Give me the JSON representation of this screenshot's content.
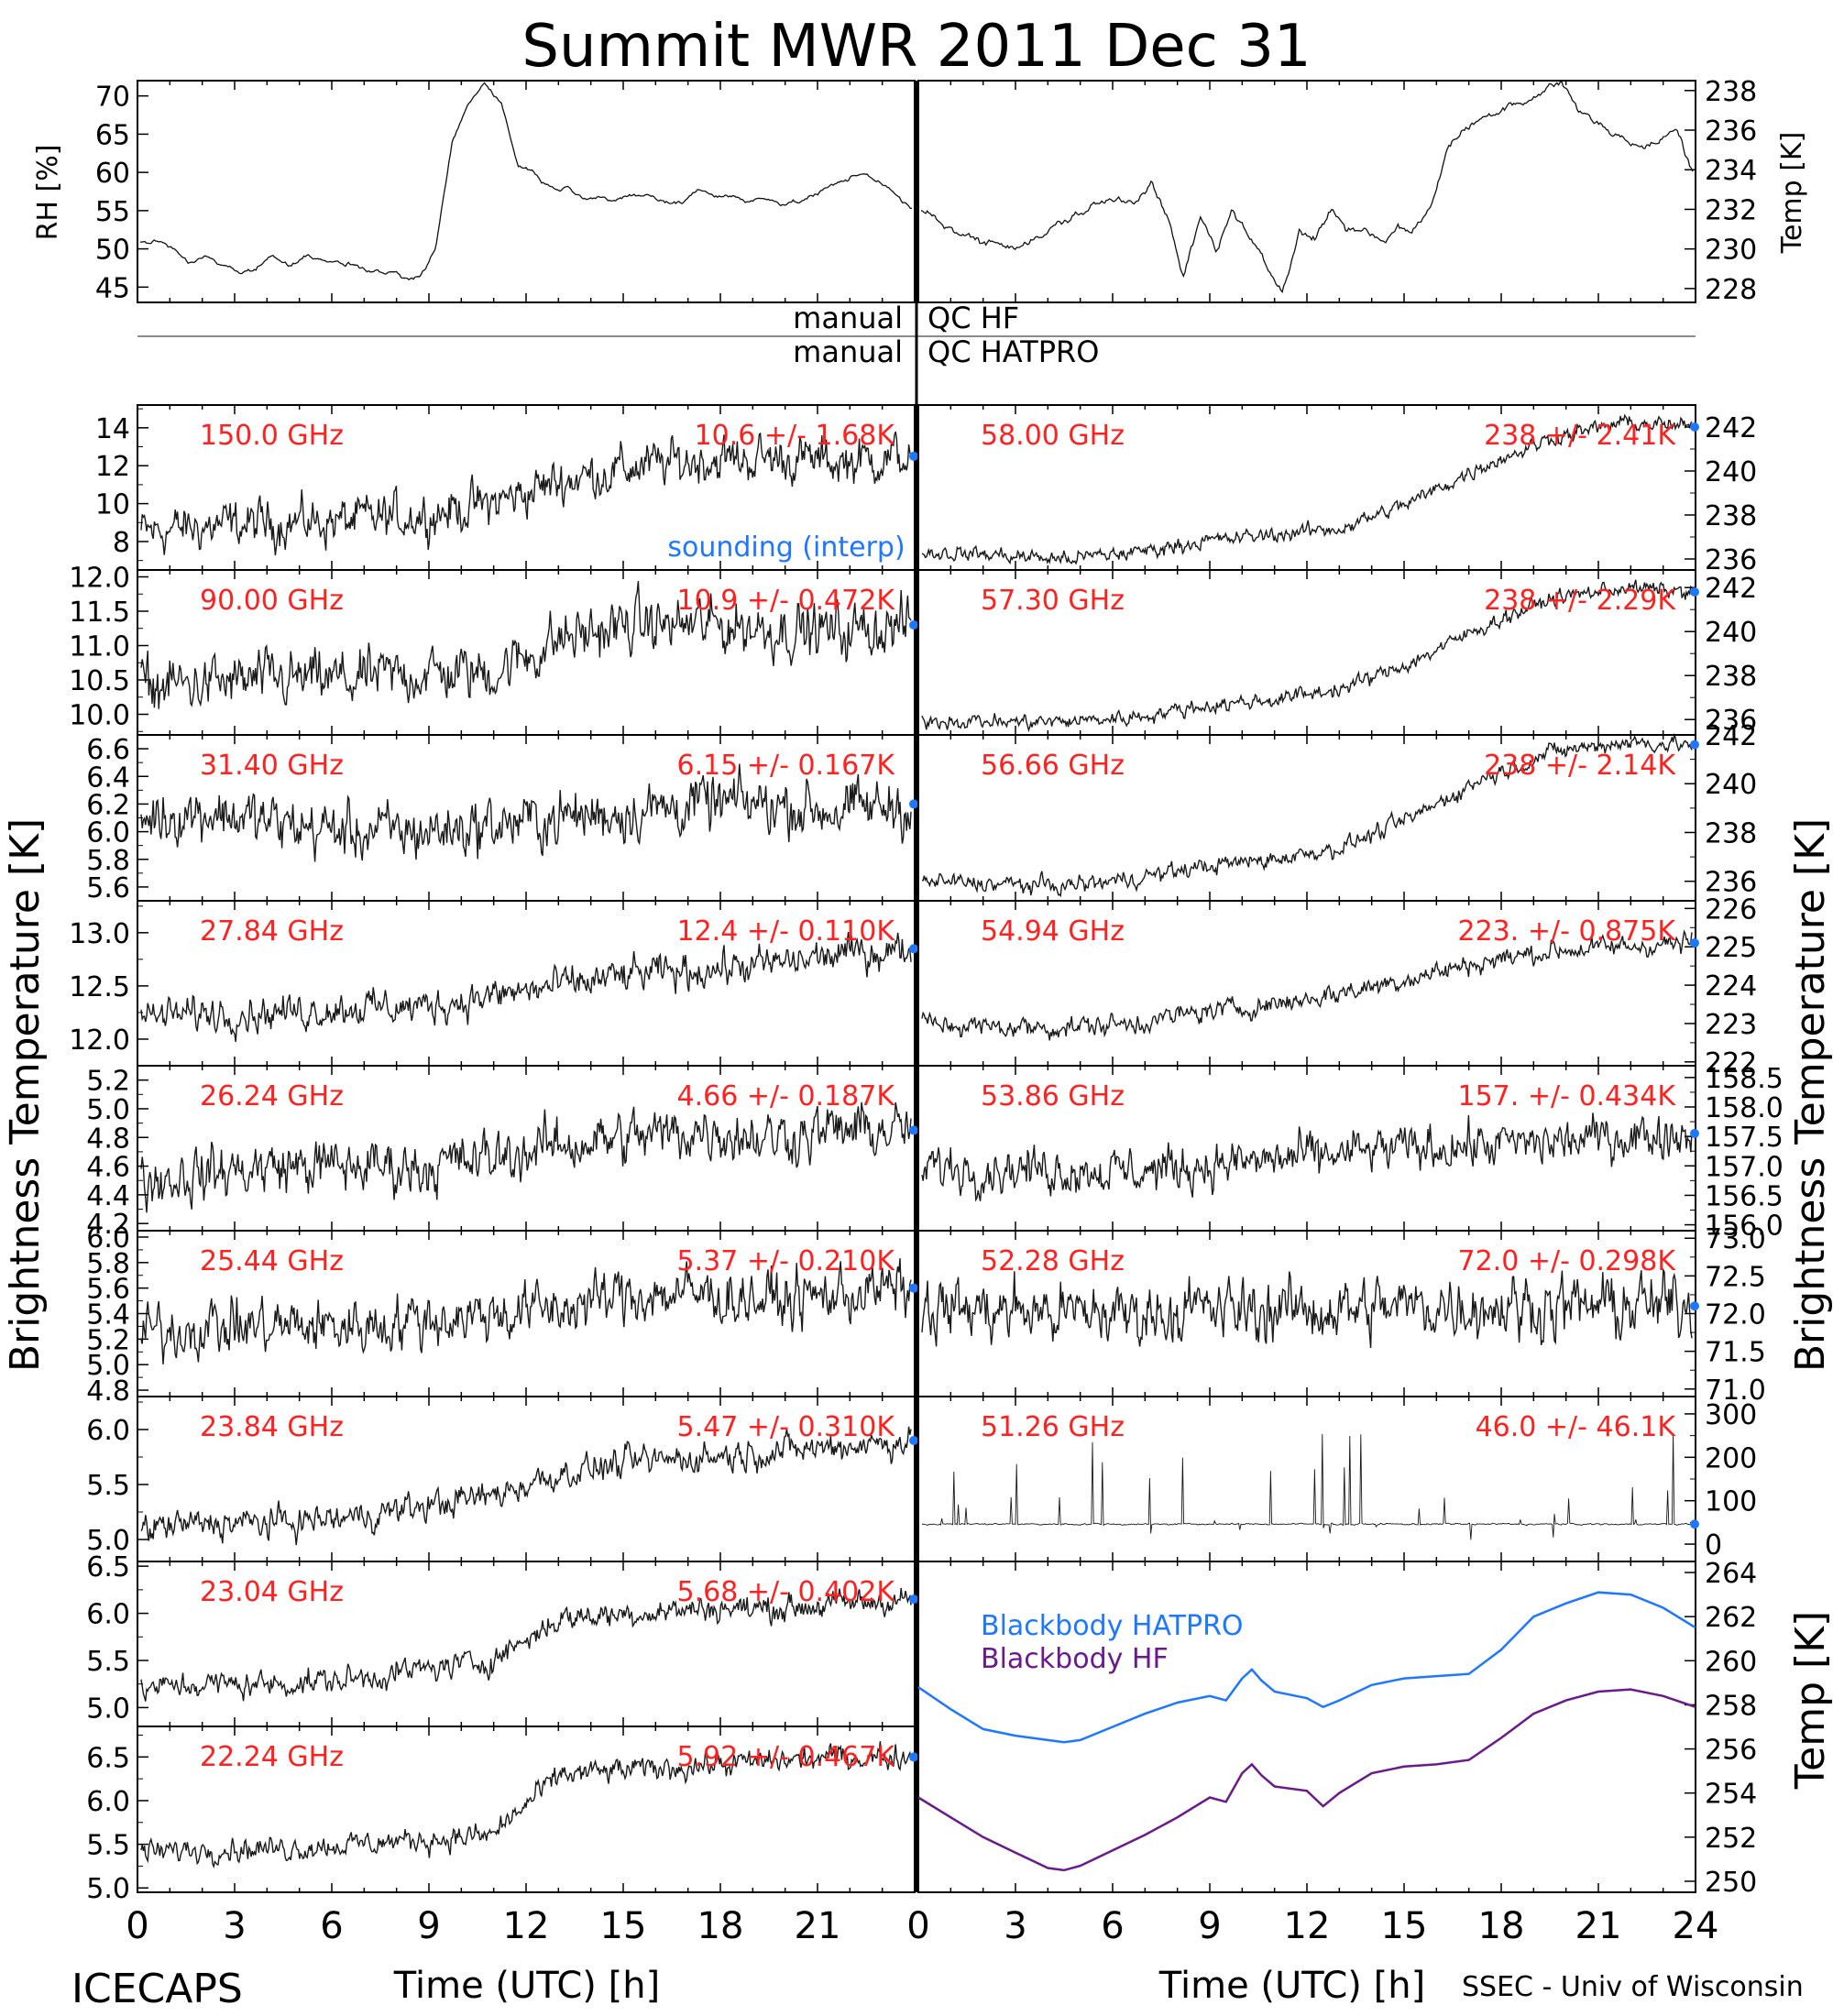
{
  "title": "Summit MWR 2011 Dec 31",
  "footer": {
    "left": "ICECAPS",
    "right": "SSEC - Univ of Wisconsin"
  },
  "xaxis": {
    "label": "Time (UTC) [h]",
    "ticks": [
      0,
      3,
      6,
      9,
      12,
      15,
      18,
      21,
      24
    ],
    "left_tick_labels": [
      "0",
      "3",
      "6",
      "9",
      "12",
      "15",
      "18",
      "21"
    ],
    "right_tick_labels": [
      "0",
      "3",
      "6",
      "9",
      "12",
      "15",
      "18",
      "21",
      "24"
    ],
    "range": [
      0,
      24
    ]
  },
  "side_labels": {
    "left": "Brightness Temperature [K]",
    "right_upper": "Brightness Temperature [K]",
    "right_lower": "Temp [K]"
  },
  "qc": {
    "hf_prefix": "manual",
    "hf_label": "QC HF",
    "hatpro_prefix": "manual",
    "hatpro_label": "QC HATPRO"
  },
  "colors": {
    "label_red": "#ff2020",
    "sounding_blue": "#1e78ff",
    "hatpro_blue": "#1e78ff",
    "hf_purple": "#6a1a8a",
    "trace": "#000000"
  },
  "met": {
    "left_ylabel": "RH [%]",
    "right_ylabel": "Temp [K]",
    "rh_ticks": [
      "45",
      "50",
      "55",
      "60",
      "65",
      "70"
    ],
    "rh_range": [
      43,
      72
    ],
    "temp_ticks": [
      "228",
      "230",
      "232",
      "234",
      "236",
      "238"
    ],
    "temp_range": [
      227.3,
      238.5
    ]
  },
  "chart_data": [
    {
      "type": "line",
      "channel": "150.0 GHz",
      "stat": "10.6 +/- 1.68K",
      "note": "sounding (interp)",
      "ticks": [
        "8",
        "10",
        "12",
        "14"
      ],
      "ylim": [
        6.5,
        15.2
      ],
      "base": [
        8.5,
        8.8,
        9.0,
        9.1,
        9.4,
        10.0,
        11.2,
        11.9,
        12.3,
        12.4,
        12.2,
        12.5
      ],
      "noise": 0.9
    },
    {
      "type": "line",
      "channel": "90.00 GHz",
      "stat": "10.9 +/- 0.472K",
      "ticks": [
        "10.0",
        "10.5",
        "11.0",
        "11.5",
        "12.0"
      ],
      "ylim": [
        9.7,
        12.1
      ],
      "base": [
        10.4,
        10.45,
        10.5,
        10.5,
        10.6,
        10.6,
        11.1,
        11.3,
        11.3,
        11.25,
        11.2,
        11.3
      ],
      "noise": 0.3
    },
    {
      "type": "line",
      "channel": "31.40 GHz",
      "stat": "6.15 +/- 0.167K",
      "ticks": [
        "5.6",
        "5.8",
        "6.0",
        "6.2",
        "6.4",
        "6.6"
      ],
      "ylim": [
        5.5,
        6.7
      ],
      "base": [
        6.1,
        6.15,
        6.05,
        6.0,
        6.0,
        6.05,
        6.1,
        6.15,
        6.2,
        6.2,
        6.15,
        6.2
      ],
      "noise": 0.15
    },
    {
      "type": "line",
      "channel": "27.84 GHz",
      "stat": "12.4 +/- 0.110K",
      "ticks": [
        "12.0",
        "12.5",
        "13.0"
      ],
      "ylim": [
        11.75,
        13.3
      ],
      "base": [
        12.2,
        12.25,
        12.25,
        12.3,
        12.3,
        12.4,
        12.5,
        12.6,
        12.65,
        12.7,
        12.8,
        12.85
      ],
      "noise": 0.12
    },
    {
      "type": "line",
      "channel": "26.24 GHz",
      "stat": "4.66 +/- 0.187K",
      "ticks": [
        "4.2",
        "4.4",
        "4.6",
        "4.8",
        "5.0",
        "5.2"
      ],
      "ylim": [
        4.15,
        5.3
      ],
      "base": [
        4.5,
        4.55,
        4.6,
        4.6,
        4.6,
        4.65,
        4.75,
        4.8,
        4.85,
        4.8,
        4.85,
        4.85
      ],
      "noise": 0.14
    },
    {
      "type": "line",
      "channel": "25.44 GHz",
      "stat": "5.37 +/- 0.210K",
      "ticks": [
        "4.8",
        "5.0",
        "5.2",
        "5.4",
        "5.6",
        "5.8",
        "6.0"
      ],
      "ylim": [
        4.75,
        6.05
      ],
      "base": [
        5.25,
        5.3,
        5.3,
        5.3,
        5.35,
        5.4,
        5.45,
        5.55,
        5.55,
        5.5,
        5.55,
        5.6
      ],
      "noise": 0.16
    },
    {
      "type": "line",
      "channel": "23.84 GHz",
      "stat": "5.47 +/- 0.310K",
      "ticks": [
        "5.0",
        "5.5",
        "6.0"
      ],
      "ylim": [
        4.8,
        6.3
      ],
      "base": [
        5.1,
        5.15,
        5.15,
        5.2,
        5.3,
        5.4,
        5.6,
        5.7,
        5.75,
        5.8,
        5.85,
        5.9
      ],
      "noise": 0.1
    },
    {
      "type": "line",
      "channel": "23.04 GHz",
      "stat": "5.68 +/- 0.402K",
      "ticks": [
        "5.0",
        "5.5",
        "6.0",
        "6.5"
      ],
      "ylim": [
        4.8,
        6.55
      ],
      "base": [
        5.2,
        5.25,
        5.25,
        5.3,
        5.4,
        5.5,
        5.95,
        6.0,
        6.05,
        6.05,
        6.1,
        6.15
      ],
      "noise": 0.1
    },
    {
      "type": "line",
      "channel": "22.24 GHz",
      "stat": "5.92 +/- 0.467K",
      "ticks": [
        "5.0",
        "5.5",
        "6.0",
        "6.5"
      ],
      "ylim": [
        4.95,
        6.85
      ],
      "base": [
        5.4,
        5.45,
        5.45,
        5.5,
        5.55,
        5.6,
        6.3,
        6.35,
        6.4,
        6.45,
        6.5,
        6.5
      ],
      "noise": 0.1
    },
    {
      "type": "line",
      "channel": "58.00 GHz",
      "stat": "238 +/- 2.41K",
      "ticks": [
        "236",
        "238",
        "240",
        "242"
      ],
      "ylim": [
        235.5,
        243
      ],
      "base": [
        236.3,
        236.2,
        236.0,
        236.3,
        236.8,
        237.1,
        237.4,
        238.6,
        240.2,
        241.5,
        242.2,
        242.0
      ],
      "noise": 0.25
    },
    {
      "type": "line",
      "channel": "57.30 GHz",
      "stat": "238 +/- 2.29K",
      "ticks": [
        "236",
        "238",
        "240",
        "242"
      ],
      "ylim": [
        235.3,
        242.8
      ],
      "base": [
        236.0,
        235.9,
        235.9,
        236.1,
        236.6,
        236.9,
        237.4,
        238.6,
        240.2,
        241.5,
        242.0,
        241.8
      ],
      "noise": 0.25
    },
    {
      "type": "line",
      "channel": "56.66 GHz",
      "stat": "238 +/- 2.14K",
      "ticks": [
        "236",
        "238",
        "240",
        "242"
      ],
      "ylim": [
        235.2,
        242
      ],
      "base": [
        236.0,
        235.9,
        235.8,
        236.1,
        236.6,
        236.9,
        237.4,
        238.6,
        240.2,
        241.3,
        241.7,
        241.6
      ],
      "noise": 0.25
    },
    {
      "type": "line",
      "channel": "54.94 GHz",
      "stat": "223. +/- 0.875K",
      "ticks": [
        "222",
        "223",
        "224",
        "225",
        "226"
      ],
      "ylim": [
        221.9,
        226.2
      ],
      "base": [
        223.0,
        222.9,
        222.9,
        223.0,
        223.3,
        223.5,
        223.8,
        224.2,
        224.6,
        224.9,
        225.0,
        225.1
      ],
      "noise": 0.2
    },
    {
      "type": "line",
      "channel": "53.86 GHz",
      "stat": "157. +/- 0.434K",
      "ticks": [
        "156.0",
        "156.5",
        "157.0",
        "157.5",
        "158.0",
        "158.5"
      ],
      "ylim": [
        155.9,
        158.7
      ],
      "base": [
        157.0,
        156.95,
        156.95,
        156.9,
        157.0,
        157.1,
        157.2,
        157.3,
        157.35,
        157.4,
        157.5,
        157.55
      ],
      "noise": 0.28
    },
    {
      "type": "line",
      "channel": "52.28 GHz",
      "stat": "72.0 +/- 0.298K",
      "ticks": [
        "71.0",
        "71.5",
        "72.0",
        "72.5",
        "73.0"
      ],
      "ylim": [
        70.9,
        73.1
      ],
      "base": [
        72.1,
        72.05,
        72.0,
        72.0,
        72.05,
        72.05,
        72.05,
        72.1,
        72.1,
        72.1,
        72.1,
        72.1
      ],
      "noise": 0.3
    },
    {
      "type": "scatter",
      "channel": "51.26 GHz",
      "stat": "46.0 +/- 46.1K",
      "ticks": [
        "0",
        "100",
        "200",
        "300"
      ],
      "ylim": [
        -40,
        340
      ],
      "base": [
        46,
        46,
        46,
        46,
        46,
        46,
        46,
        46,
        46,
        46,
        46,
        46
      ],
      "noise": 1.5
    },
    {
      "type": "line",
      "title_series": [
        "Blackbody HATPRO",
        "Blackbody HF"
      ],
      "ticks": [
        "250",
        "252",
        "254",
        "256",
        "258",
        "260",
        "262",
        "264"
      ],
      "ylim": [
        249.5,
        264.5
      ],
      "x": [
        0,
        1,
        2,
        3,
        4,
        4.5,
        5,
        6,
        7,
        8,
        9,
        9.5,
        10,
        10.3,
        10.6,
        11,
        12,
        12.5,
        13,
        14,
        15,
        16,
        17,
        18,
        19,
        20,
        21,
        22,
        23,
        24
      ],
      "series": [
        {
          "name": "Blackbody HATPRO",
          "values": [
            258.8,
            257.8,
            256.9,
            256.6,
            256.4,
            256.3,
            256.4,
            257.0,
            257.6,
            258.1,
            258.4,
            258.2,
            259.2,
            259.6,
            259.1,
            258.6,
            258.3,
            257.9,
            258.2,
            258.9,
            259.2,
            259.3,
            259.4,
            260.5,
            262.0,
            262.6,
            263.1,
            263.0,
            262.4,
            261.5
          ]
        },
        {
          "name": "Blackbody HF",
          "values": [
            253.8,
            252.9,
            252.0,
            251.3,
            250.6,
            250.5,
            250.7,
            251.4,
            252.1,
            252.9,
            253.8,
            253.6,
            254.9,
            255.3,
            254.8,
            254.3,
            254.1,
            253.4,
            254.0,
            254.9,
            255.2,
            255.3,
            255.5,
            256.5,
            257.6,
            258.2,
            258.6,
            258.7,
            258.4,
            257.9
          ]
        }
      ]
    },
    {
      "type": "line",
      "series_name": "RH",
      "base": [
        51,
        51,
        50,
        48,
        49,
        48,
        47,
        47.5,
        49,
        48,
        49,
        49,
        48,
        48,
        47,
        47,
        46,
        46,
        50,
        64,
        69,
        72,
        69,
        61,
        60,
        58,
        58,
        57,
        57,
        56,
        57,
        57,
        56,
        56,
        58,
        57,
        57,
        56,
        57,
        56,
        56,
        57,
        58,
        59,
        60,
        59,
        57,
        55
      ],
      "ylim": [
        43,
        72
      ],
      "noise": 0.5
    },
    {
      "type": "line",
      "series_name": "Temp",
      "base": [
        232,
        231.5,
        231,
        230.5,
        230.3,
        230.3,
        230.3,
        230.5,
        231.0,
        231.5,
        232.0,
        232.3,
        232.5,
        232.5,
        233.5,
        231.5,
        228.5,
        231.5,
        230.0,
        232.0,
        230.5,
        229.0,
        228.0,
        231.0,
        230.5,
        232.0,
        231.0,
        231.0,
        230.5,
        231.0,
        231.0,
        232.0,
        235.0,
        236.0,
        236.5,
        237.0,
        237.5,
        237.5,
        238.0,
        238.5,
        237.0,
        236.5,
        236.0,
        235.5,
        235.0,
        235.5,
        236.0,
        234.0
      ],
      "ylim": [
        227.3,
        238.5
      ],
      "noise": 0.35
    }
  ]
}
